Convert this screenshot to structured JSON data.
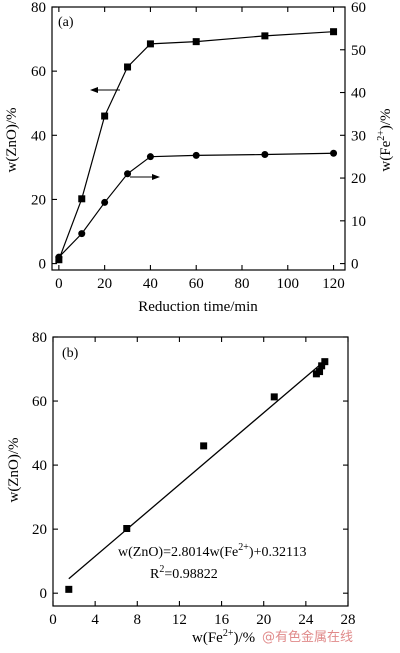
{
  "chart_data": [
    {
      "panel_label": "(a)",
      "type": "line",
      "xlabel": "Reduction time/min",
      "ylabel_left": "w(ZnO)/%",
      "ylabel_right": "w(Fe2+)/%",
      "x_ticks": [
        0,
        20,
        40,
        60,
        80,
        100,
        120
      ],
      "y_left_ticks": [
        0,
        20,
        40,
        60,
        80
      ],
      "y_right_ticks": [
        0,
        10,
        20,
        30,
        40,
        50,
        60
      ],
      "xlim": [
        -3,
        125
      ],
      "ylim_left": [
        -2,
        80
      ],
      "ylim_right": [
        -1.5,
        60
      ],
      "series": [
        {
          "axis": "left",
          "marker": "square",
          "arrow": "left",
          "x": [
            0,
            10,
            20,
            30,
            40,
            60,
            90,
            120
          ],
          "values": [
            1.2,
            20.2,
            46.0,
            61.3,
            68.5,
            69.2,
            71.0,
            72.3
          ]
        },
        {
          "axis": "right",
          "marker": "circle",
          "arrow": "right",
          "x": [
            0,
            10,
            20,
            30,
            40,
            60,
            90,
            120
          ],
          "values": [
            1.5,
            7.0,
            14.3,
            21.0,
            25.0,
            25.3,
            25.5,
            25.8
          ]
        }
      ]
    },
    {
      "panel_label": "(b)",
      "type": "scatter",
      "xlabel": "w(Fe2+)/%",
      "ylabel": "w(ZnO)/%",
      "x_ticks": [
        0,
        4,
        8,
        12,
        16,
        20,
        24,
        28
      ],
      "y_ticks": [
        0,
        20,
        40,
        60,
        80
      ],
      "xlim": [
        0,
        28
      ],
      "ylim": [
        -4,
        80
      ],
      "points": {
        "x": [
          1.5,
          7.0,
          14.3,
          21.0,
          25.0,
          25.3,
          25.5,
          25.8
        ],
        "y": [
          1.2,
          20.2,
          46.0,
          61.3,
          68.5,
          69.2,
          71.0,
          72.3
        ]
      },
      "fit": {
        "slope": 2.8014,
        "intercept": 0.32113,
        "x_range": [
          1.5,
          25.8
        ],
        "equation_text": "w(ZnO)=2.8014w(Fe2+)+0.32113",
        "r2_text": "R2=0.98822"
      }
    }
  ],
  "watermark": {
    "text": "@有色金属在线"
  }
}
